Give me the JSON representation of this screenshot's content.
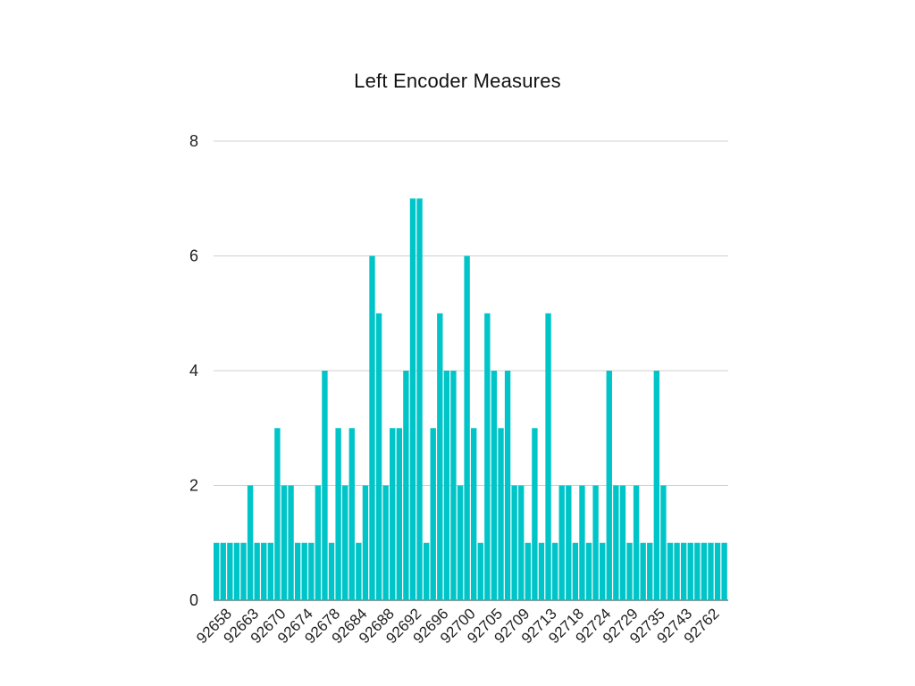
{
  "chart_data": {
    "type": "bar",
    "title": "Left Encoder Measures",
    "xlabel": "",
    "ylabel": "",
    "ylim": [
      0,
      8
    ],
    "yticks": [
      0,
      2,
      4,
      6,
      8
    ],
    "grid": true,
    "bar_color": "#00c5c8",
    "xtick_labels": [
      "92658",
      "92663",
      "92670",
      "92674",
      "92678",
      "92684",
      "92688",
      "92692",
      "92696",
      "92700",
      "92705",
      "92709",
      "92713",
      "92718",
      "92724",
      "92729",
      "92735",
      "92743",
      "92762"
    ],
    "values": [
      1,
      1,
      1,
      1,
      1,
      2,
      1,
      1,
      1,
      3,
      2,
      2,
      1,
      1,
      1,
      2,
      4,
      1,
      3,
      2,
      3,
      1,
      2,
      6,
      5,
      2,
      3,
      3,
      4,
      7,
      7,
      1,
      3,
      5,
      4,
      4,
      2,
      6,
      3,
      1,
      5,
      4,
      3,
      4,
      2,
      2,
      1,
      3,
      1,
      5,
      1,
      2,
      2,
      1,
      2,
      1,
      2,
      1,
      4,
      2,
      2,
      1,
      2,
      1,
      1,
      4,
      2,
      1,
      1,
      1,
      1,
      1,
      1,
      1,
      1,
      1
    ]
  }
}
